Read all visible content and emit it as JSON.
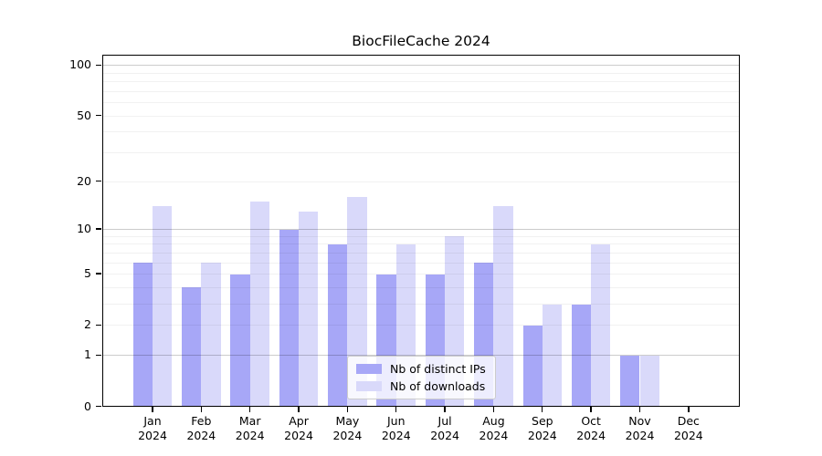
{
  "title": "BiocFileCache 2024",
  "chart_data": {
    "type": "bar",
    "title": "BiocFileCache 2024",
    "categories": [
      "Jan",
      "Feb",
      "Mar",
      "Apr",
      "May",
      "Jun",
      "Jul",
      "Aug",
      "Sep",
      "Oct",
      "Nov",
      "Dec"
    ],
    "x_year_label": "2024",
    "series": [
      {
        "name": "Nb of distinct IPs",
        "color": "#a7a7f7",
        "values": [
          6,
          4,
          5,
          10,
          8,
          5,
          5,
          6,
          2,
          3,
          1,
          0
        ]
      },
      {
        "name": "Nb of downloads",
        "color": "#d9d9fa",
        "values": [
          14,
          6,
          15,
          13,
          16,
          8,
          9,
          14,
          3,
          8,
          1,
          0
        ]
      }
    ],
    "y_axis": {
      "scale": "log1p",
      "tick_values": [
        0,
        1,
        2,
        5,
        10,
        20,
        50,
        100
      ],
      "tick_labels": [
        "0",
        "1",
        "2",
        "5",
        "10",
        "20",
        "50",
        "100"
      ],
      "major_gridlines": [
        1,
        10,
        100
      ],
      "minor_gridlines": [
        2,
        3,
        4,
        5,
        6,
        7,
        8,
        9,
        20,
        30,
        40,
        50,
        60,
        70,
        80,
        90
      ],
      "ylim": [
        0,
        120
      ]
    },
    "legend": {
      "position": "lower-center",
      "entries": [
        "Nb of distinct IPs",
        "Nb of downloads"
      ]
    },
    "grid": true
  },
  "colors": {
    "background": "#ffffff",
    "axis": "#000000",
    "distinct_ips_bar": "#a7a7f7",
    "downloads_bar": "#d9d9fa",
    "major_grid": "rgba(0,0,0,0.20)",
    "minor_grid": "rgba(0,0,0,0.055)"
  }
}
